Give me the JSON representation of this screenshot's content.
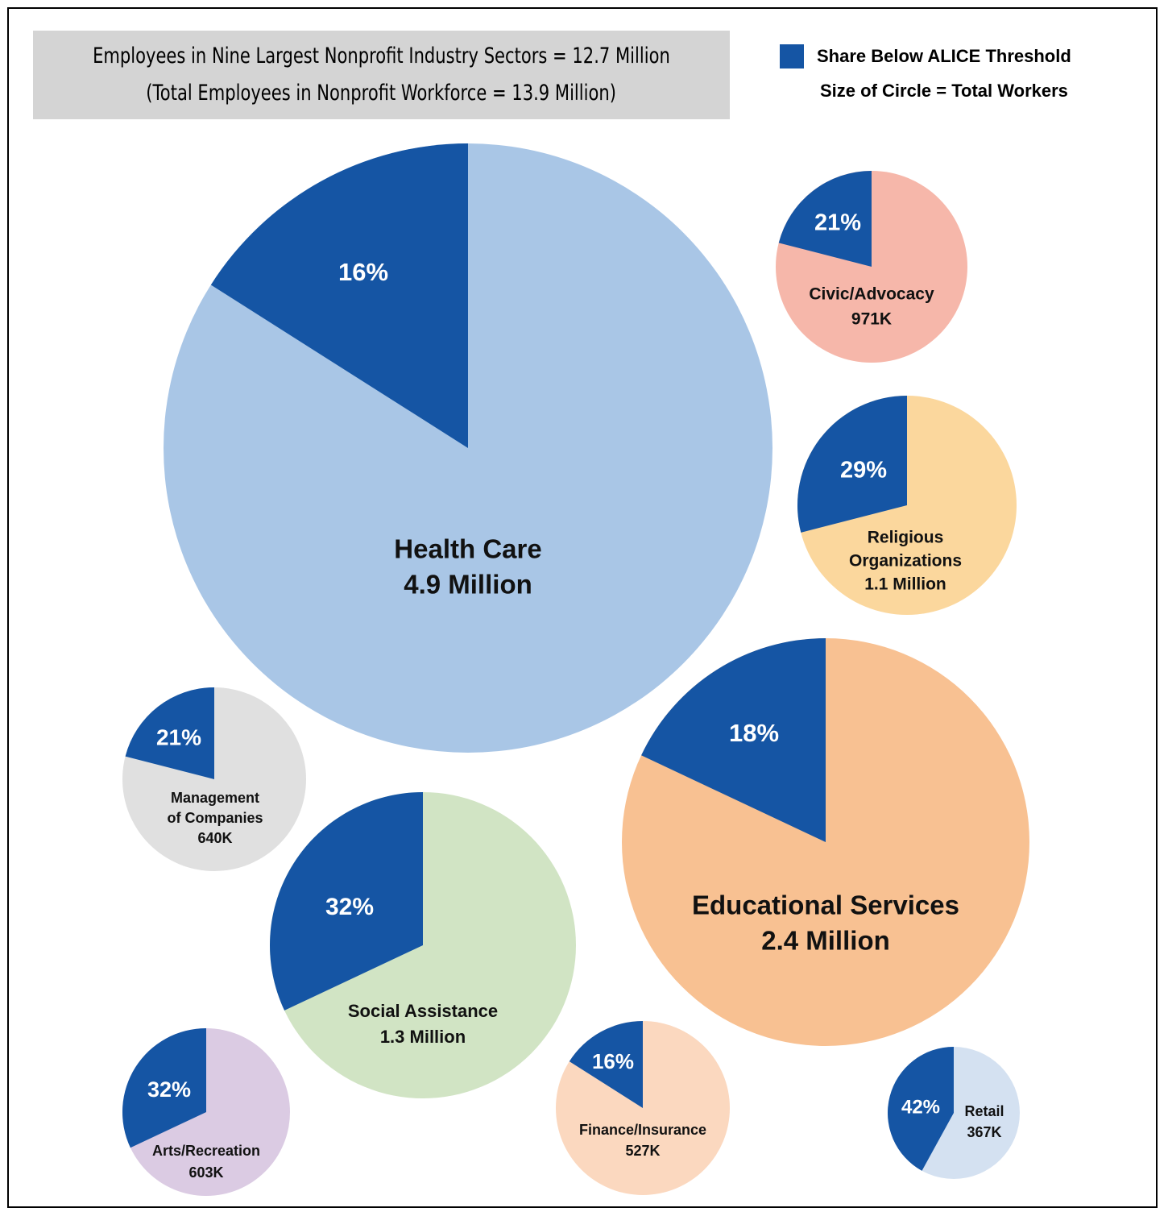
{
  "chart_data": {
    "type": "pie",
    "title_lines": [
      "Employees in Nine Largest Nonprofit Industry Sectors = 12.7 Million",
      "(Total Employees in Nonprofit Workforce = 13.9 Million)"
    ],
    "legend": {
      "share_label": "Share Below ALICE Threshold",
      "share_color": "#1555a4",
      "size_label": "Size of Circle = Total Workers"
    },
    "sectors": [
      {
        "name_lines": [
          "Health Care"
        ],
        "total_label": "4.9 Million",
        "total_workers": 4900000,
        "share_below_alice": 16,
        "share_label": "16%",
        "color": "#a9c6e6"
      },
      {
        "name_lines": [
          "Educational Services"
        ],
        "total_label": "2.4 Million",
        "total_workers": 2400000,
        "share_below_alice": 18,
        "share_label": "18%",
        "color": "#f8c192"
      },
      {
        "name_lines": [
          "Social Assistance"
        ],
        "total_label": "1.3 Million",
        "total_workers": 1300000,
        "share_below_alice": 32,
        "share_label": "32%",
        "color": "#d1e4c4"
      },
      {
        "name_lines": [
          "Religious",
          "Organizations"
        ],
        "total_label": "1.1 Million",
        "total_workers": 1100000,
        "share_below_alice": 29,
        "share_label": "29%",
        "color": "#fbd79d"
      },
      {
        "name_lines": [
          "Civic/Advocacy"
        ],
        "total_label": "971K",
        "total_workers": 971000,
        "share_below_alice": 21,
        "share_label": "21%",
        "color": "#f6b7aa"
      },
      {
        "name_lines": [
          "Management",
          "of Companies"
        ],
        "total_label": "640K",
        "total_workers": 640000,
        "share_below_alice": 21,
        "share_label": "21%",
        "color": "#e0e0e0"
      },
      {
        "name_lines": [
          "Arts/Recreation"
        ],
        "total_label": "603K",
        "total_workers": 603000,
        "share_below_alice": 32,
        "share_label": "32%",
        "color": "#dbcbe3"
      },
      {
        "name_lines": [
          "Finance/Insurance"
        ],
        "total_label": "527K",
        "total_workers": 527000,
        "share_below_alice": 16,
        "share_label": "16%",
        "color": "#fbd8bf"
      },
      {
        "name_lines": [
          "Retail"
        ],
        "total_label": "367K",
        "total_workers": 367000,
        "share_below_alice": 42,
        "share_label": "42%",
        "color": "#d4e1f1"
      }
    ]
  }
}
